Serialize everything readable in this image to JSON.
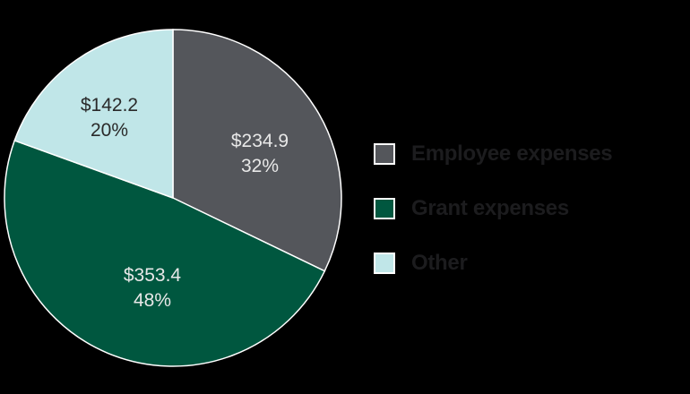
{
  "chart_data": {
    "type": "pie",
    "title": "",
    "categories": [
      "Employee expenses",
      "Grant expenses",
      "Other"
    ],
    "values": [
      234.9,
      353.4,
      142.2
    ],
    "percentages": [
      32,
      48,
      20
    ],
    "value_labels": [
      "$234.9",
      "$353.4",
      "$142.2"
    ],
    "percent_labels": [
      "32%",
      "48%",
      "20%"
    ],
    "colors": [
      "#54565b",
      "#00573f",
      "#c0e6e8"
    ],
    "label_colors": [
      "#e8e8e8",
      "#e8e8e8",
      "#2a2a2a"
    ],
    "start_angle": "12 o'clock",
    "direction": "clockwise",
    "legend_position": "right"
  },
  "legend": {
    "items": [
      {
        "label": "Employee expenses",
        "color": "#54565b"
      },
      {
        "label": "Grant expenses",
        "color": "#00573f"
      },
      {
        "label": "Other",
        "color": "#c0e6e8"
      }
    ]
  },
  "background": "#000000"
}
